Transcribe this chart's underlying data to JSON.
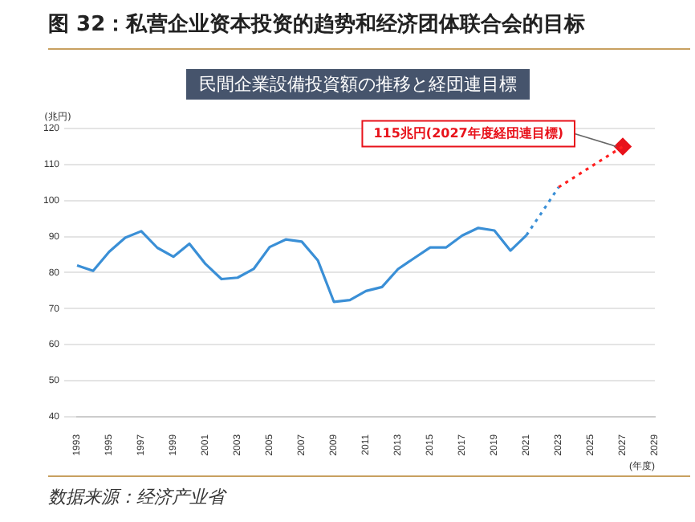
{
  "chart_data": {
    "type": "line",
    "title": "图 32：私营企业资本投资的趋势和经济团体联合会的目标",
    "subtitle": "民間企業設備投資額の推移と経団連目標",
    "xlabel": "(年度)",
    "ylabel": "(兆円)",
    "categories": [
      "1993",
      null,
      "1995",
      null,
      "1997",
      null,
      "1999",
      null,
      "2001",
      null,
      "2003",
      null,
      "2005",
      null,
      "2007",
      null,
      "2009",
      null,
      "2011",
      null,
      "2013",
      null,
      "2015",
      null,
      "2017",
      null,
      "2019",
      null,
      "2021",
      null,
      "2023",
      null,
      "2025",
      null,
      "2027",
      null,
      "2029"
    ],
    "series": [
      {
        "color": "#3a8fd6",
        "line_style": "solid",
        "values": [
          82,
          80.5,
          85.8,
          89.7,
          91.5,
          86.9,
          84.4,
          88,
          82.4,
          78.2,
          78.6,
          81,
          87.1,
          89.2,
          88.6,
          83.4,
          71.9,
          72.4,
          74.9,
          76,
          81,
          84,
          87,
          87,
          90.3,
          92.4,
          91.7,
          86.1,
          90.4,
          null,
          null,
          null,
          null,
          null,
          null,
          null,
          null
        ]
      },
      {
        "color": "#3a8fd6",
        "line_style": "dotted",
        "values": [
          null,
          null,
          null,
          null,
          null,
          null,
          null,
          null,
          null,
          null,
          null,
          null,
          null,
          null,
          null,
          null,
          null,
          null,
          null,
          null,
          null,
          null,
          null,
          null,
          null,
          null,
          null,
          null,
          90.4,
          97,
          103.7,
          null,
          null,
          null,
          null,
          null,
          null
        ]
      },
      {
        "color": "#ff2020",
        "line_style": "dotted",
        "values": [
          null,
          null,
          null,
          null,
          null,
          null,
          null,
          null,
          null,
          null,
          null,
          null,
          null,
          null,
          null,
          null,
          null,
          null,
          null,
          null,
          null,
          null,
          null,
          null,
          null,
          null,
          null,
          null,
          null,
          null,
          103.7,
          null,
          null,
          null,
          115,
          null,
          null
        ]
      },
      {
        "type": "scatter",
        "marker": "diamond",
        "color": "#e8121b",
        "values": [
          null,
          null,
          null,
          null,
          null,
          null,
          null,
          null,
          null,
          null,
          null,
          null,
          null,
          null,
          null,
          null,
          null,
          null,
          null,
          null,
          null,
          null,
          null,
          null,
          null,
          null,
          null,
          null,
          null,
          null,
          null,
          null,
          null,
          null,
          115,
          null,
          null
        ]
      }
    ],
    "ylim": [
      40,
      120
    ],
    "yticks": [
      40,
      50,
      60,
      70,
      80,
      90,
      100,
      110,
      120
    ],
    "grid": "y",
    "legend": false,
    "marker": "none",
    "annotations": [
      {
        "text": "115兆円(2027年度経団連目標)",
        "x": "2027",
        "y": 115
      },
      "数据来源：经济产业省"
    ]
  }
}
